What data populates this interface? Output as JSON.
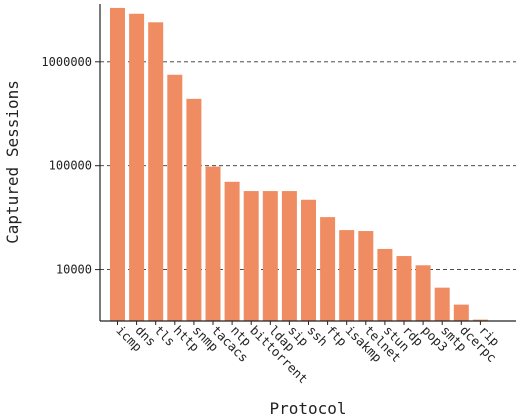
{
  "chart_data": {
    "type": "bar",
    "title": "",
    "xlabel": "Protocol",
    "ylabel": "Captured Sessions",
    "yscale": "log",
    "ylim": [
      3200,
      3600000
    ],
    "yticks": [
      10000,
      100000,
      1000000
    ],
    "ytick_labels": [
      "10000",
      "100000",
      "1000000"
    ],
    "grid": "horizontal dashed at major y ticks",
    "legend": "none",
    "bar_color": "#f08c62",
    "categories": [
      "icmp",
      "dns",
      "tls",
      "http",
      "snmp",
      "tacacs",
      "ntp",
      "bittorrent",
      "ldap",
      "sip",
      "ssh",
      "ftp",
      "isakmp",
      "telnet",
      "stun",
      "rdp",
      "pop3",
      "smtp",
      "dcerpc",
      "rip"
    ],
    "values": [
      3300000,
      2900000,
      2400000,
      750000,
      440000,
      98000,
      70000,
      57000,
      57000,
      57000,
      47000,
      32000,
      24000,
      23500,
      15800,
      13500,
      11000,
      6700,
      4600,
      3300
    ]
  }
}
